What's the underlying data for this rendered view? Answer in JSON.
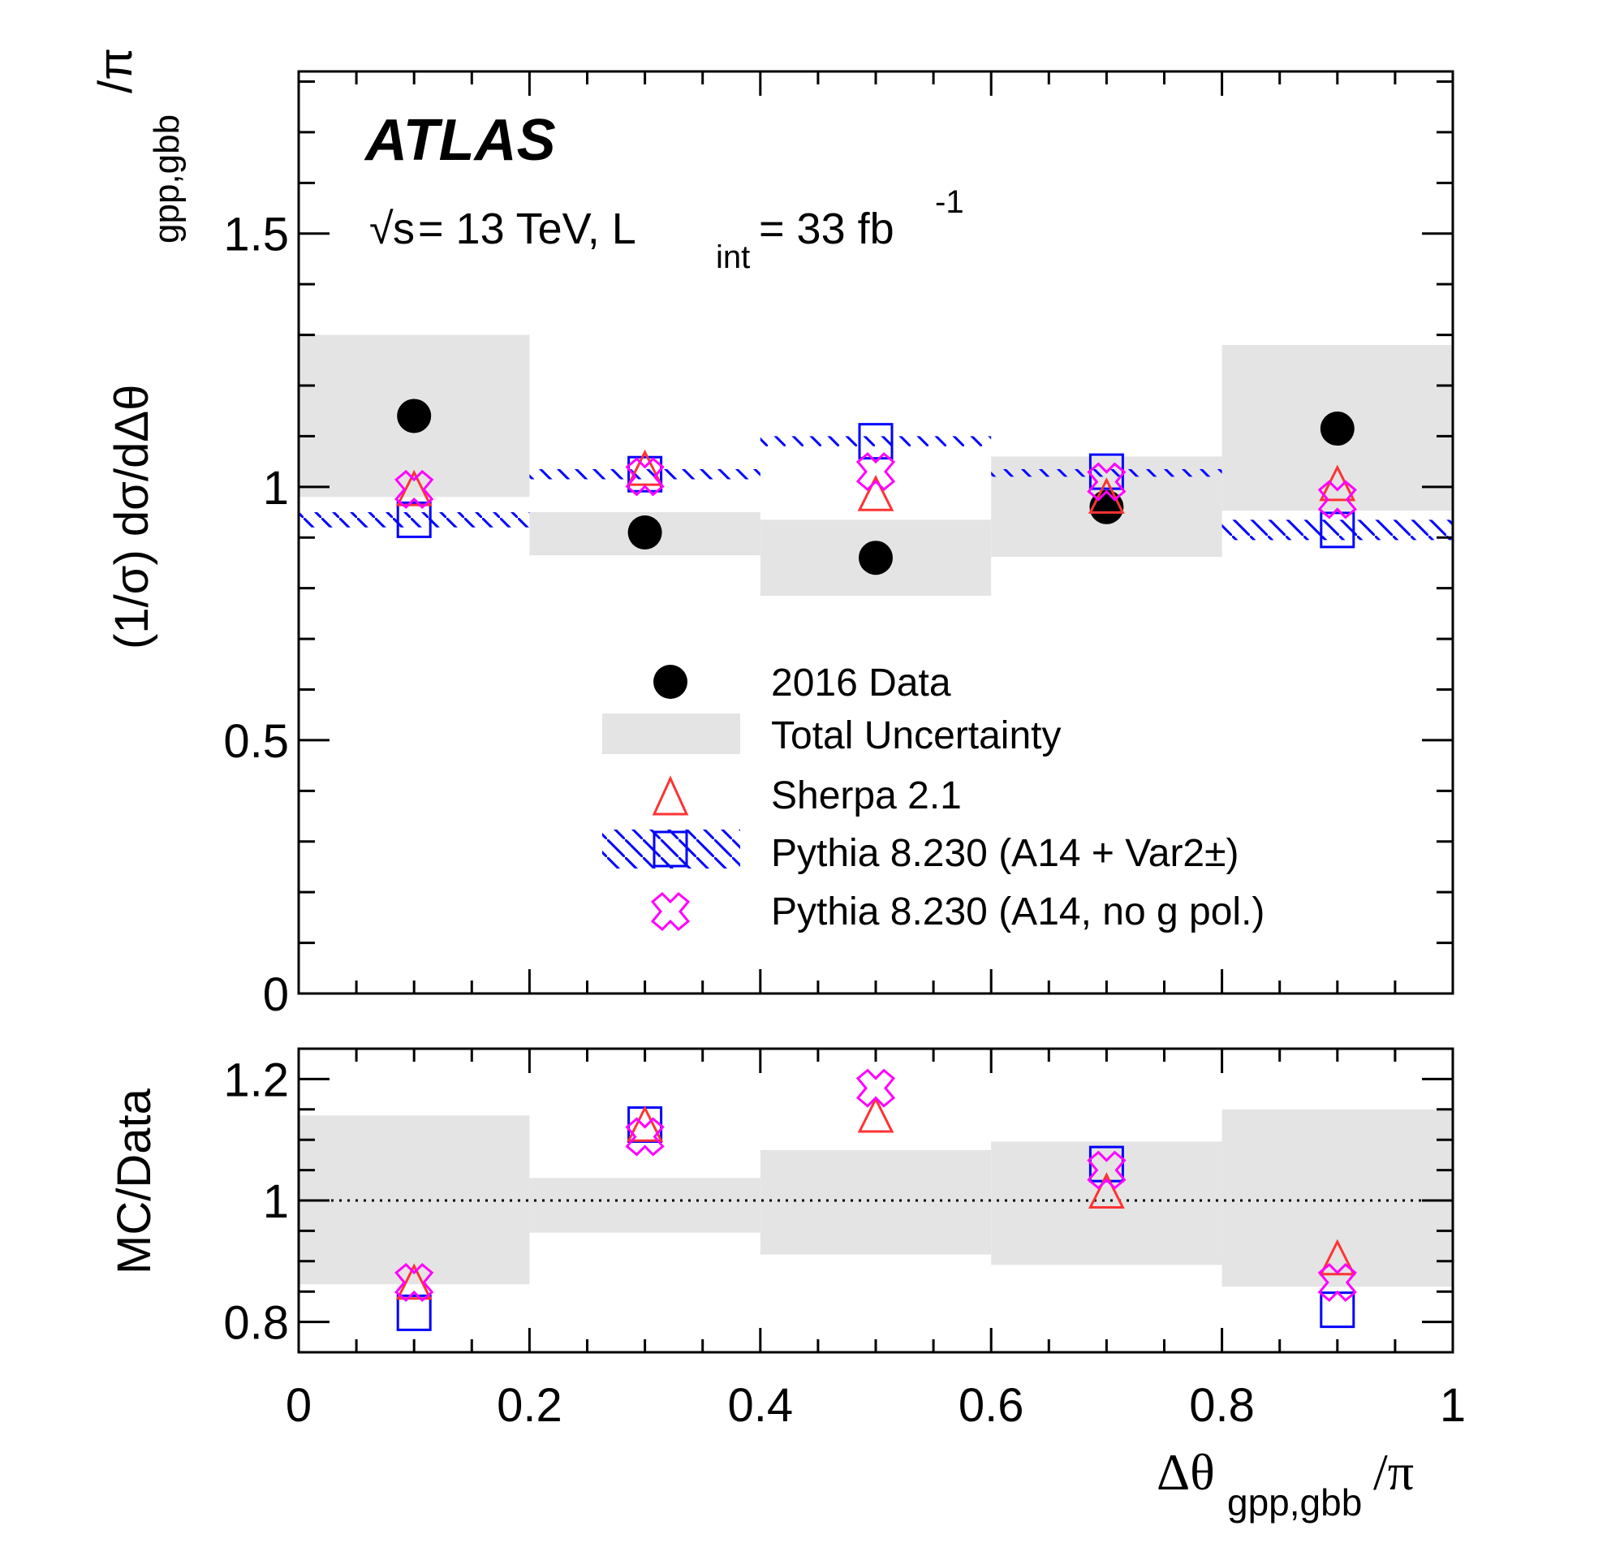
{
  "chart_data": [
    {
      "type": "scatter",
      "panel": "main",
      "title": "",
      "experiment_label": "ATLAS",
      "energy_label": {
        "sqrt_s": "s",
        "text": " = 13 TeV, L",
        "sub": "int",
        "text2": " = 33 fb",
        "sup": "-1"
      },
      "xlabel": "Δθgpp,gbb/π",
      "ylabel": "(1/σ) dσ/dΔθgpp,gbb/π",
      "ylabel_parts": {
        "main": "(1/σ) dσ/dΔθ",
        "sub": "gpp,gbb",
        "tail": "/π"
      },
      "xlim": [
        0,
        1
      ],
      "ylim": [
        0,
        1.82
      ],
      "yticks": [
        0,
        0.5,
        1,
        1.5
      ],
      "ytick_labels": [
        "0",
        "0.5",
        "1",
        "1.5"
      ],
      "bin_edges": [
        0,
        0.2,
        0.4,
        0.6,
        0.8,
        1.0
      ],
      "x": [
        0.1,
        0.3,
        0.5,
        0.7,
        0.9
      ],
      "series": [
        {
          "name": "2016 Data",
          "marker": "filled-circle",
          "color": "#000000",
          "values": [
            1.14,
            0.91,
            0.86,
            0.96,
            1.115
          ]
        },
        {
          "name": "Total Uncertainty",
          "marker": "band",
          "color": "#e4e4e4",
          "low": [
            0.98,
            0.865,
            0.785,
            0.862,
            0.953
          ],
          "high": [
            1.3,
            0.95,
            0.935,
            1.06,
            1.28
          ]
        },
        {
          "name": "Sherpa 2.1",
          "marker": "open-triangle",
          "color": "#ff3333",
          "values": [
            0.99,
            1.03,
            0.98,
            0.975,
            1.0
          ]
        },
        {
          "name": "Pythia 8.230 (A14 + Var2±)",
          "marker": "open-square-hatched-band",
          "color": "#0000ff",
          "values": [
            0.935,
            1.025,
            1.09,
            1.03,
            0.915
          ],
          "band_low": [
            0.92,
            1.015,
            1.08,
            1.02,
            0.895
          ],
          "band_high": [
            0.95,
            1.035,
            1.1,
            1.035,
            0.935
          ]
        },
        {
          "name": "Pythia 8.230 (A14, no g pol.)",
          "marker": "open-cross",
          "color": "#ff00ff",
          "values": [
            0.995,
            1.02,
            1.03,
            1.01,
            0.975
          ]
        }
      ],
      "legend_position": "center-right",
      "grid": false
    },
    {
      "type": "scatter",
      "panel": "ratio",
      "xlabel": "Δθgpp,gbb/π",
      "xlabel_parts": {
        "main": "Δθ",
        "sub": "gpp,gbb",
        "tail": "/π"
      },
      "ylabel": "MC/Data",
      "xlim": [
        0,
        1
      ],
      "ylim": [
        0.75,
        1.25
      ],
      "xticks": [
        0,
        0.2,
        0.4,
        0.6,
        0.8,
        1
      ],
      "xtick_labels": [
        "0",
        "0.2",
        "0.4",
        "0.6",
        "0.8",
        "1"
      ],
      "yticks": [
        0.8,
        1,
        1.2
      ],
      "ytick_labels": [
        "0.8",
        "1",
        "1.2"
      ],
      "reference_line": 1,
      "bin_edges": [
        0,
        0.2,
        0.4,
        0.6,
        0.8,
        1.0
      ],
      "x": [
        0.1,
        0.3,
        0.5,
        0.7,
        0.9
      ],
      "series": [
        {
          "name": "Total Uncertainty",
          "marker": "band",
          "color": "#e4e4e4",
          "low": [
            0.862,
            0.947,
            0.911,
            0.894,
            0.858
          ],
          "high": [
            1.14,
            1.037,
            1.083,
            1.097,
            1.15
          ]
        },
        {
          "name": "Sherpa 2.1",
          "marker": "open-triangle",
          "color": "#ff3333",
          "values": [
            0.86,
            1.12,
            1.135,
            1.01,
            0.9
          ]
        },
        {
          "name": "Pythia 8.230 (A14 + Var2±)",
          "marker": "open-square",
          "color": "#0000ff",
          "values": [
            0.815,
            1.125,
            null,
            1.06,
            0.82
          ]
        },
        {
          "name": "Pythia 8.230 (A14, no g pol.)",
          "marker": "open-cross",
          "color": "#ff00ff",
          "values": [
            0.865,
            1.105,
            1.185,
            1.05,
            0.865
          ]
        }
      ],
      "grid": false
    }
  ],
  "legend": {
    "items": [
      {
        "label": "2016 Data"
      },
      {
        "label": "Total Uncertainty"
      },
      {
        "label": "Sherpa 2.1"
      },
      {
        "label": "Pythia 8.230 (A14 + Var2±)"
      },
      {
        "label": "Pythia 8.230 (A14, no g pol.)"
      }
    ]
  }
}
